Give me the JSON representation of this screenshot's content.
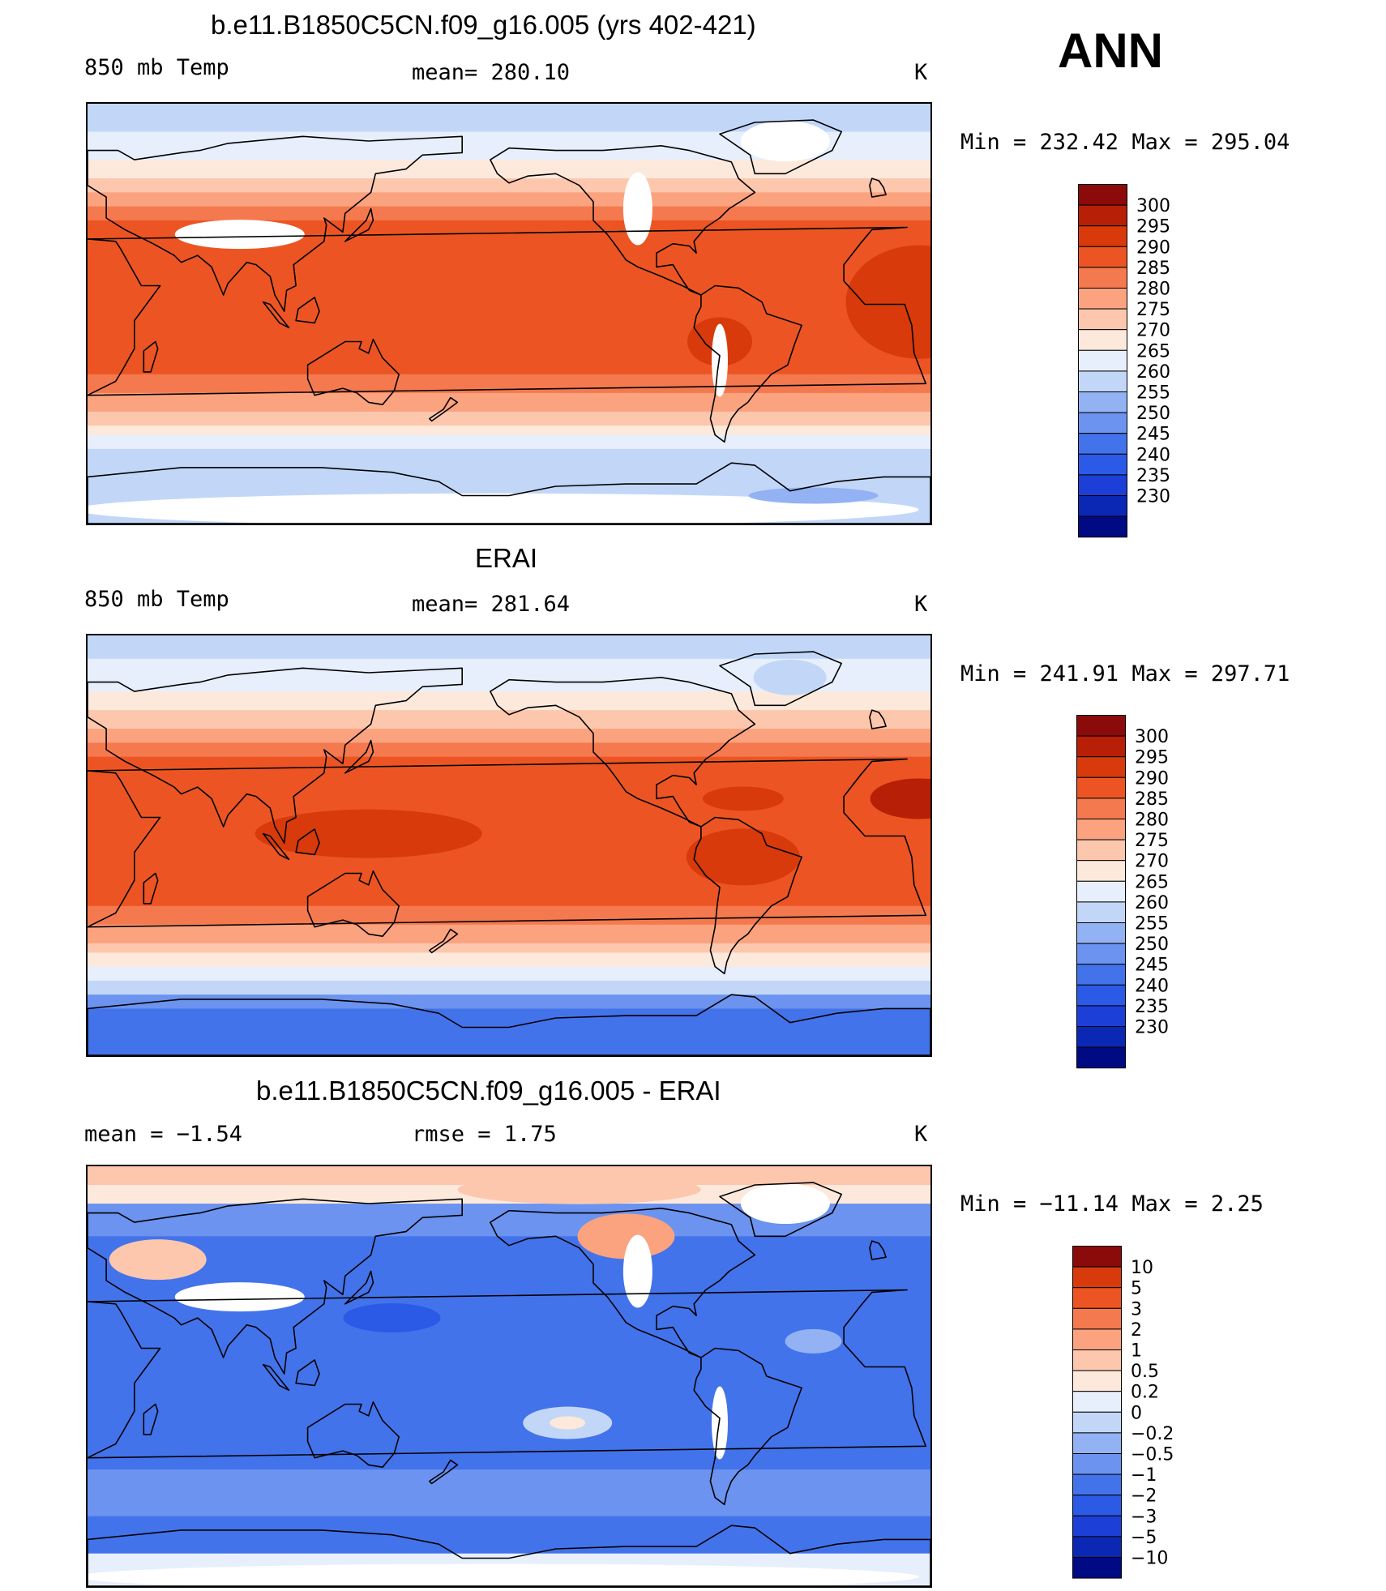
{
  "header": {
    "season": "ANN"
  },
  "palettes": {
    "temp": [
      "#000a83",
      "#0a28b4",
      "#1c3fd7",
      "#2b5ae6",
      "#4373eb",
      "#6b93ef",
      "#93b2f4",
      "#c2d7f8",
      "#e7effc",
      "#fde9dc",
      "#fcc7ad",
      "#fba27f",
      "#f5794f",
      "#ec5523",
      "#d83a0b",
      "#b71f06",
      "#8b0a0a"
    ],
    "diff": [
      "#000a83",
      "#0a28b4",
      "#1c3fd7",
      "#2b5ae6",
      "#4373eb",
      "#6b93ef",
      "#93b2f4",
      "#c2d7f8",
      "#e7effc",
      "#fde9dc",
      "#fcc7ad",
      "#fba27f",
      "#f5794f",
      "#ec5523",
      "#d83a0b",
      "#8b0a0a"
    ]
  },
  "panels": [
    {
      "title": "b.e11.B1850C5CN.f09_g16.005 (yrs 402-421)",
      "left_label": "850 mb Temp",
      "center_label": "mean= 280.10",
      "units": "K",
      "minmax": "Min = 232.42 Max = 295.04",
      "colorbar_labels": [
        "300",
        "295",
        "290",
        "285",
        "280",
        "275",
        "270",
        "265",
        "260",
        "255",
        "250",
        "245",
        "240",
        "235",
        "230"
      ]
    },
    {
      "title": "ERAI",
      "left_label": "850 mb Temp",
      "center_label": "mean= 281.64",
      "units": "K",
      "minmax": "Min = 241.91 Max = 297.71",
      "colorbar_labels": [
        "300",
        "295",
        "290",
        "285",
        "280",
        "275",
        "270",
        "265",
        "260",
        "255",
        "250",
        "245",
        "240",
        "235",
        "230"
      ]
    },
    {
      "title": "b.e11.B1850C5CN.f09_g16.005 - ERAI",
      "left_label": "mean =   −1.54",
      "center_label": "rmse =    1.75",
      "units": "K",
      "minmax": "Min = −11.14 Max =    2.25",
      "colorbar_labels": [
        "10",
        "5",
        "3",
        "2",
        "1",
        "0.5",
        "0.2",
        "0",
        "−0.2",
        "−0.5",
        "−1",
        "−2",
        "−3",
        "−5",
        "−10"
      ]
    }
  ]
}
